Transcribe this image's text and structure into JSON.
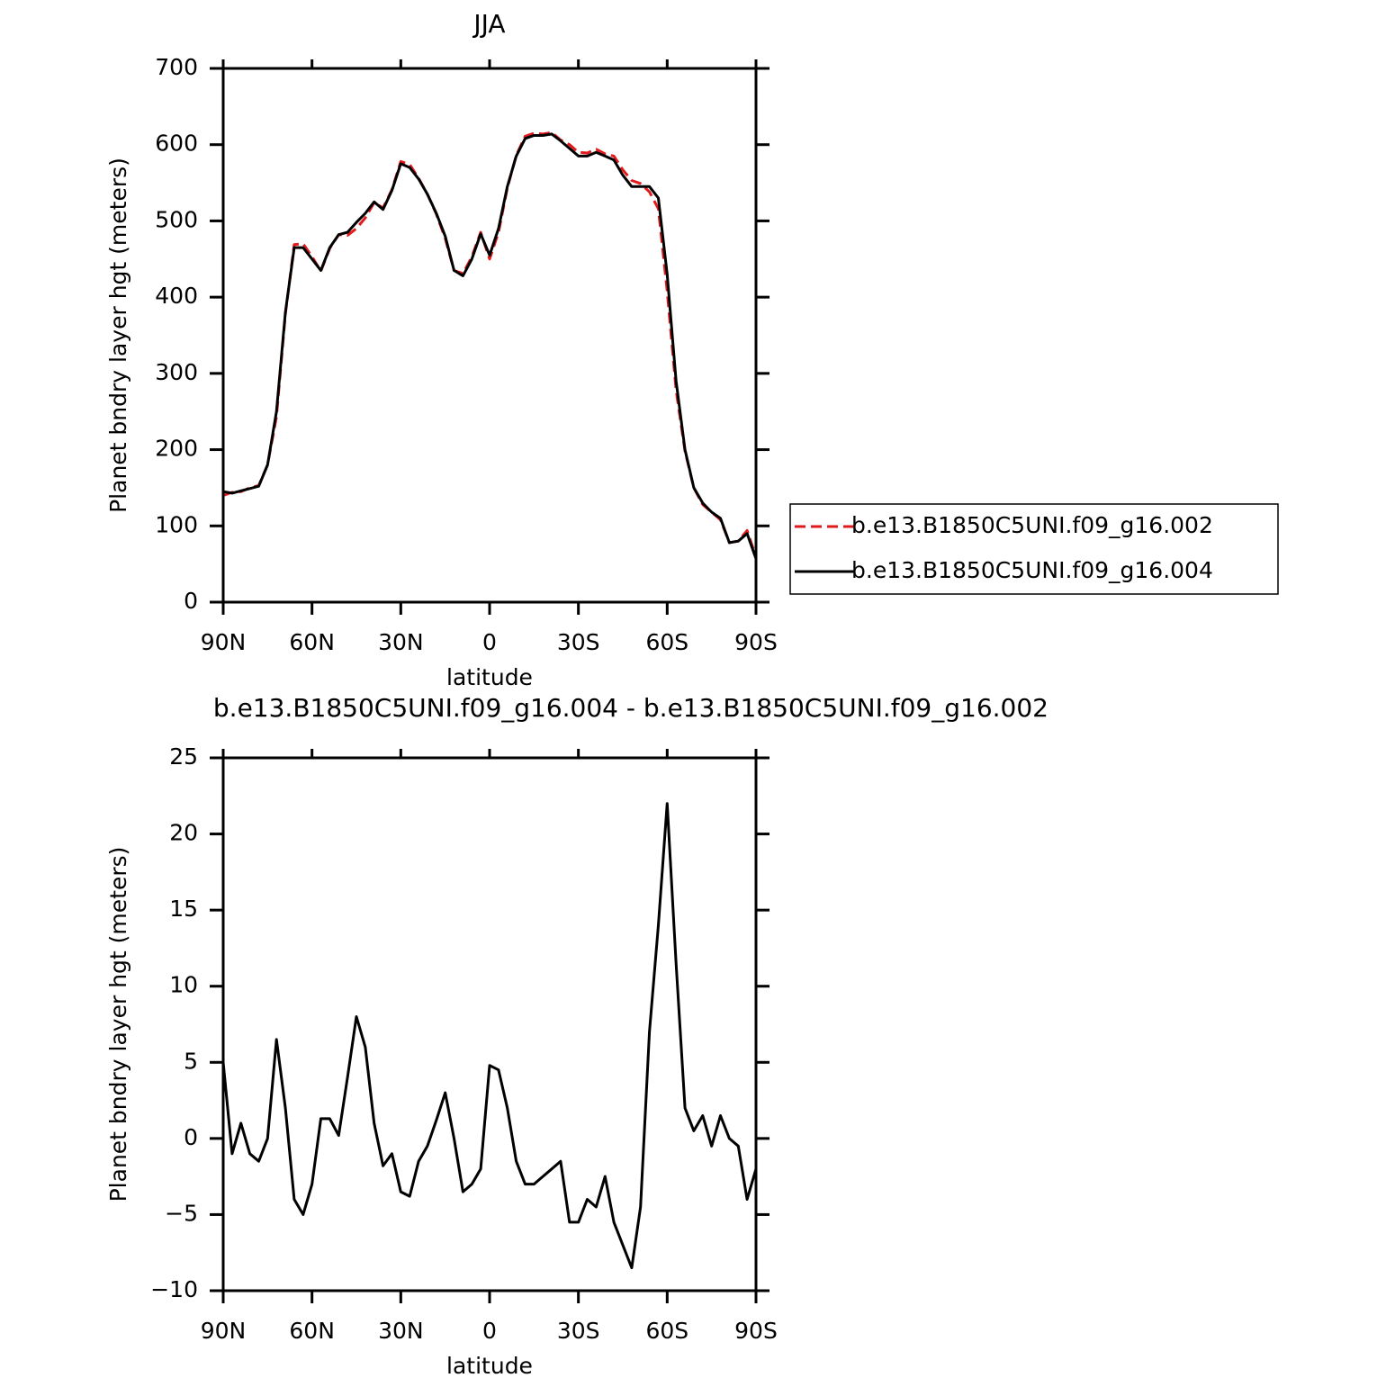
{
  "chart_data": [
    {
      "type": "line",
      "title": "JJA",
      "xlabel": "latitude",
      "ylabel": "Planet bndry layer hgt (meters)",
      "x": [
        90,
        87,
        84,
        81,
        78,
        75,
        72,
        69,
        66,
        63,
        60,
        57,
        54,
        51,
        48,
        45,
        42,
        39,
        36,
        33,
        30,
        27,
        24,
        21,
        18,
        15,
        12,
        9,
        6,
        3,
        0,
        -3,
        -6,
        -9,
        -12,
        -15,
        -18,
        -21,
        -24,
        -27,
        -30,
        -33,
        -36,
        -39,
        -42,
        -45,
        -48,
        -51,
        -54,
        -57,
        -60,
        -63,
        -66,
        -69,
        -72,
        -75,
        -78,
        -81,
        -84,
        -87,
        -90
      ],
      "xlim": [
        90,
        -90
      ],
      "xticks": [
        {
          "value": 90,
          "label": "90N"
        },
        {
          "value": 60,
          "label": "60N"
        },
        {
          "value": 30,
          "label": "30N"
        },
        0,
        {
          "value": -30,
          "label": "30S"
        },
        {
          "value": -60,
          "label": "60S"
        },
        {
          "value": -90,
          "label": "90S"
        }
      ],
      "ylim": [
        0,
        700
      ],
      "yticks": [
        0,
        100,
        200,
        300,
        400,
        500,
        600,
        700
      ],
      "legend": "right",
      "series": [
        {
          "name": "b.e13.B1850C5UNI.f09_g16.002",
          "color": "#e31a1c",
          "style": "dashed",
          "values": [
            140,
            144,
            145,
            150,
            153,
            180,
            243,
            378,
            469,
            470,
            453,
            434,
            464,
            482,
            481,
            490,
            504,
            524,
            517,
            541,
            578,
            574,
            556,
            535,
            509,
            477,
            435,
            431,
            453,
            485,
            450,
            485,
            543,
            586,
            611,
            615,
            614,
            616,
            606,
            600,
            590,
            589,
            594,
            588,
            585,
            567,
            553,
            549,
            538,
            516,
            408,
            278,
            198,
            150,
            128,
            118,
            108,
            78,
            80,
            94,
            59
          ]
        },
        {
          "name": "b.e13.B1850C5UNI.f09_g16.004",
          "color": "#000000",
          "style": "solid",
          "values": [
            145,
            143,
            146,
            149,
            152,
            180,
            250,
            380,
            465,
            465,
            450,
            435,
            465,
            482,
            485,
            498,
            510,
            525,
            515,
            540,
            575,
            570,
            555,
            535,
            510,
            480,
            435,
            428,
            450,
            483,
            455,
            490,
            545,
            585,
            608,
            612,
            612,
            614,
            605,
            595,
            585,
            585,
            590,
            585,
            580,
            560,
            545,
            545,
            545,
            530,
            430,
            290,
            200,
            150,
            130,
            118,
            110,
            78,
            80,
            90,
            57
          ]
        }
      ]
    },
    {
      "type": "line",
      "title": "b.e13.B1850C5UNI.f09_g16.004 - b.e13.B1850C5UNI.f09_g16.002",
      "xlabel": "latitude",
      "ylabel": "Planet bndry layer hgt (meters)",
      "x": [
        90,
        87,
        84,
        81,
        78,
        75,
        72,
        69,
        66,
        63,
        60,
        57,
        54,
        51,
        48,
        45,
        42,
        39,
        36,
        33,
        30,
        27,
        24,
        21,
        18,
        15,
        12,
        9,
        6,
        3,
        0,
        -3,
        -6,
        -9,
        -12,
        -15,
        -18,
        -21,
        -24,
        -27,
        -30,
        -33,
        -36,
        -39,
        -42,
        -45,
        -48,
        -51,
        -54,
        -57,
        -60,
        -63,
        -66,
        -69,
        -72,
        -75,
        -78,
        -81,
        -84,
        -87,
        -90
      ],
      "xlim": [
        90,
        -90
      ],
      "xticks": [
        {
          "value": 90,
          "label": "90N"
        },
        {
          "value": 60,
          "label": "60N"
        },
        {
          "value": 30,
          "label": "30N"
        },
        0,
        {
          "value": -30,
          "label": "30S"
        },
        {
          "value": -60,
          "label": "60S"
        },
        {
          "value": -90,
          "label": "90S"
        }
      ],
      "ylim": [
        -10,
        25
      ],
      "yticks": [
        {
          "value": -10,
          "label": "−10"
        },
        {
          "value": -5,
          "label": "−5"
        },
        0,
        5,
        10,
        15,
        20,
        25
      ],
      "series": [
        {
          "color": "#000000",
          "style": "solid",
          "values": [
            5,
            -1,
            1,
            -1,
            -1.5,
            0,
            6.5,
            2,
            -4,
            -5,
            -3,
            1.3,
            1.3,
            0.2,
            4,
            8,
            6,
            1,
            -1.8,
            -1,
            -3.5,
            -3.8,
            -1.5,
            -0.5,
            1.2,
            3,
            0,
            -3.5,
            -3,
            -2,
            4.8,
            4.5,
            2,
            -1.5,
            -3,
            -3,
            -2.5,
            -2,
            -1.5,
            -5.5,
            -5.5,
            -4,
            -4.5,
            -2.5,
            -5.5,
            -7,
            -8.5,
            -4.5,
            7,
            14,
            22,
            11.5,
            2,
            0.5,
            1.5,
            -0.5,
            1.5,
            0,
            -0.5,
            -4,
            -2
          ]
        }
      ]
    }
  ]
}
